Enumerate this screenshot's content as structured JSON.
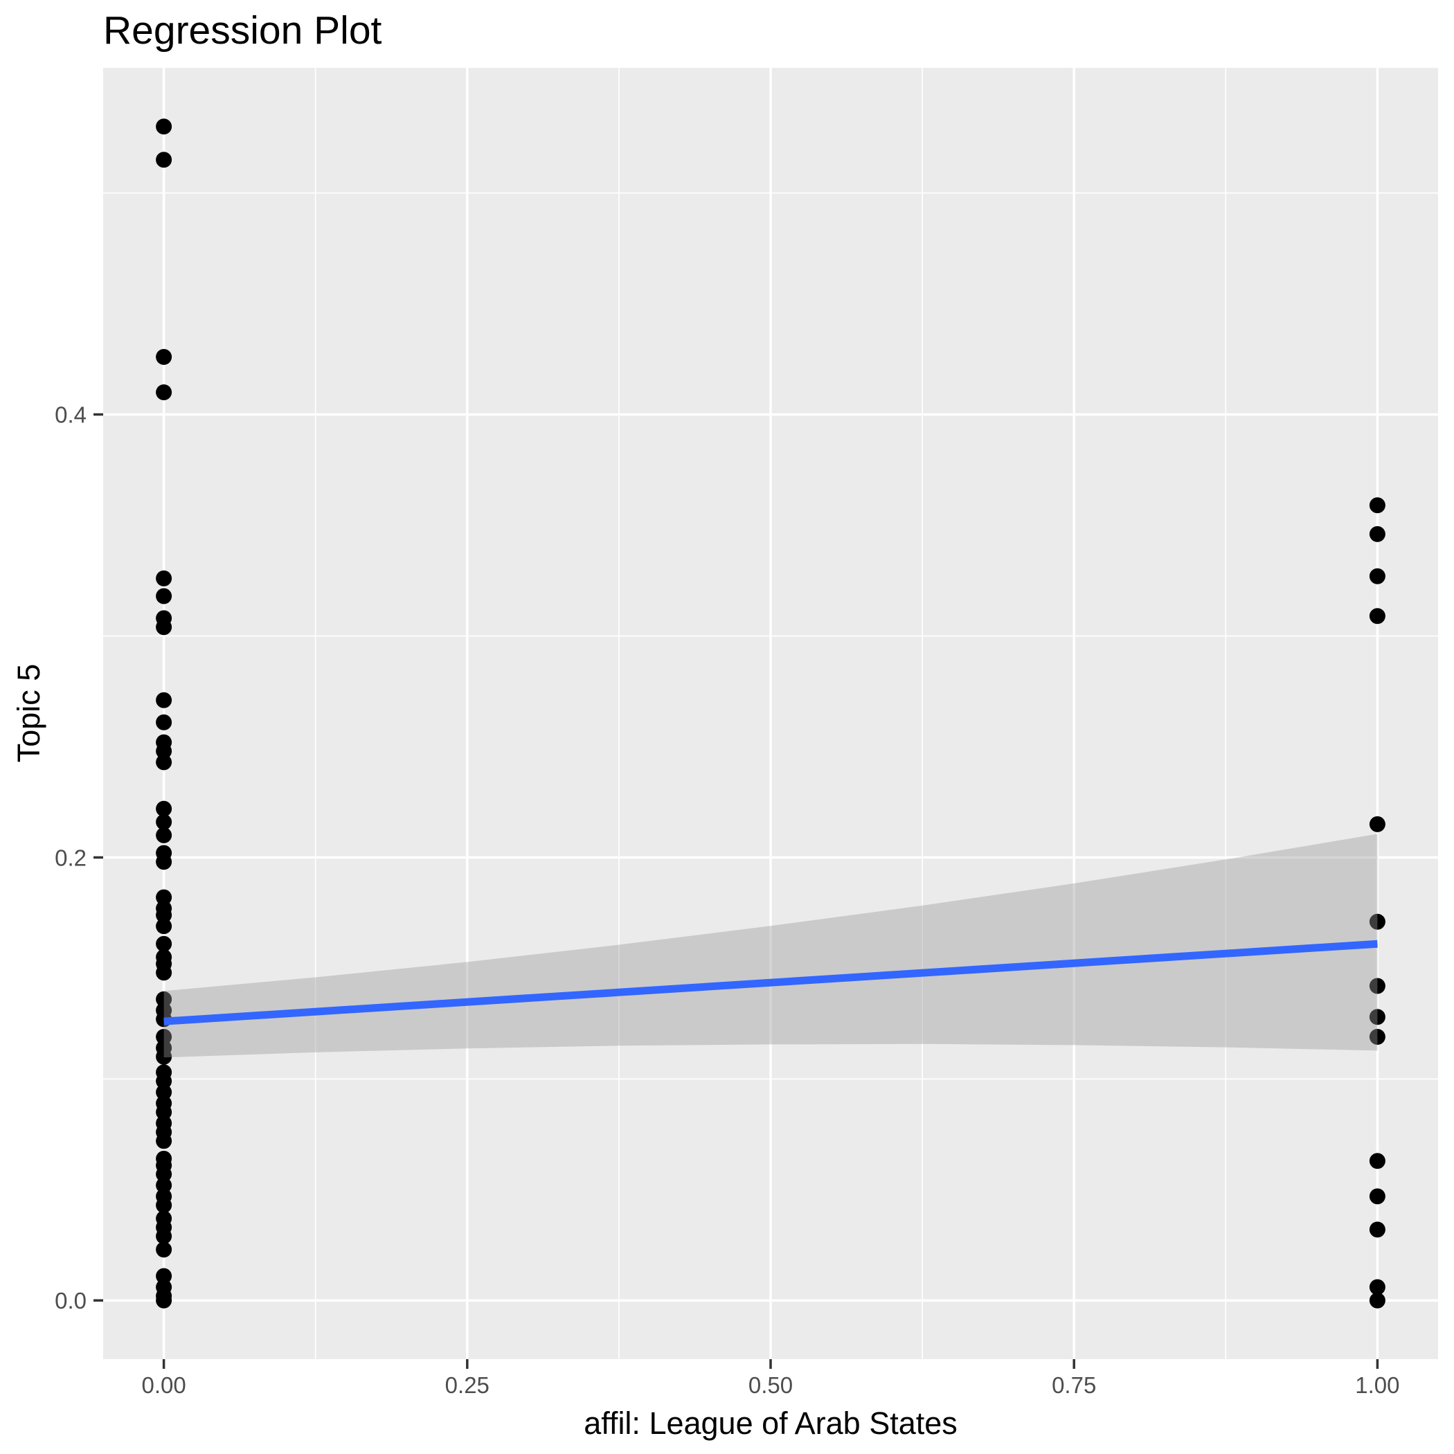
{
  "title": "Regression Plot",
  "chart_data": {
    "type": "scatter",
    "title": "Regression Plot",
    "xlabel": "affil: League of Arab States",
    "ylabel": "Topic 5",
    "xlim": [
      -0.05,
      1.05
    ],
    "ylim": [
      -0.0265,
      0.5565
    ],
    "grid": true,
    "legend_position": "none",
    "x_ticks": {
      "values": [
        0,
        0.25,
        0.5,
        0.75,
        1.0
      ],
      "labels": [
        "0.00",
        "0.25",
        "0.50",
        "0.75",
        "1.00"
      ]
    },
    "y_ticks": {
      "values": [
        0,
        0.2,
        0.4
      ],
      "labels": [
        "0.0",
        "0.2",
        "0.4"
      ]
    },
    "x_minor_gridlines": [
      0.125,
      0.375,
      0.625,
      0.875
    ],
    "y_minor_gridlines": [
      0.1,
      0.3,
      0.5
    ],
    "series": [
      {
        "name": "observations at affil = 0",
        "x": 0,
        "y": [
          0.53,
          0.515,
          0.426,
          0.41,
          0.326,
          0.318,
          0.308,
          0.304,
          0.271,
          0.261,
          0.252,
          0.248,
          0.243,
          0.222,
          0.216,
          0.21,
          0.202,
          0.198,
          0.182,
          0.177,
          0.174,
          0.169,
          0.161,
          0.155,
          0.152,
          0.148,
          0.136,
          0.131,
          0.127,
          0.119,
          0.114,
          0.11,
          0.103,
          0.099,
          0.094,
          0.089,
          0.085,
          0.08,
          0.076,
          0.072,
          0.064,
          0.061,
          0.057,
          0.052,
          0.047,
          0.043,
          0.037,
          0.033,
          0.029,
          0.023,
          0.011,
          0.006,
          0.002,
          0.0
        ]
      },
      {
        "name": "observations at affil = 1",
        "x": 1,
        "y": [
          0.359,
          0.346,
          0.327,
          0.309,
          0.215,
          0.171,
          0.142,
          0.128,
          0.119,
          0.063,
          0.047,
          0.032,
          0.006,
          0.0
        ]
      }
    ],
    "regression_line": {
      "x": [
        0,
        1
      ],
      "y": [
        0.126,
        0.161
      ],
      "intercept": 0.126,
      "slope": 0.035
    },
    "confidence_band": {
      "x": [
        0,
        0.125,
        0.25,
        0.375,
        0.5,
        0.625,
        0.75,
        0.875,
        1
      ],
      "upper": [
        0.1397,
        0.1459,
        0.1528,
        0.1606,
        0.1691,
        0.1783,
        0.1883,
        0.1991,
        0.2106
      ],
      "lower": [
        0.1097,
        0.112,
        0.1138,
        0.115,
        0.1156,
        0.1158,
        0.1153,
        0.1143,
        0.1128
      ]
    },
    "colors": {
      "panel_background": "#EBEBEB",
      "gridline": "#FFFFFF",
      "point": "#000000",
      "regression_line": "#3366FF",
      "confidence_band": "rgba(153,153,153,0.4)",
      "tick_label": "#4D4D4D",
      "tick_mark": "#333333",
      "axis_title": "#000000"
    },
    "point_radius_px": 11.5
  }
}
